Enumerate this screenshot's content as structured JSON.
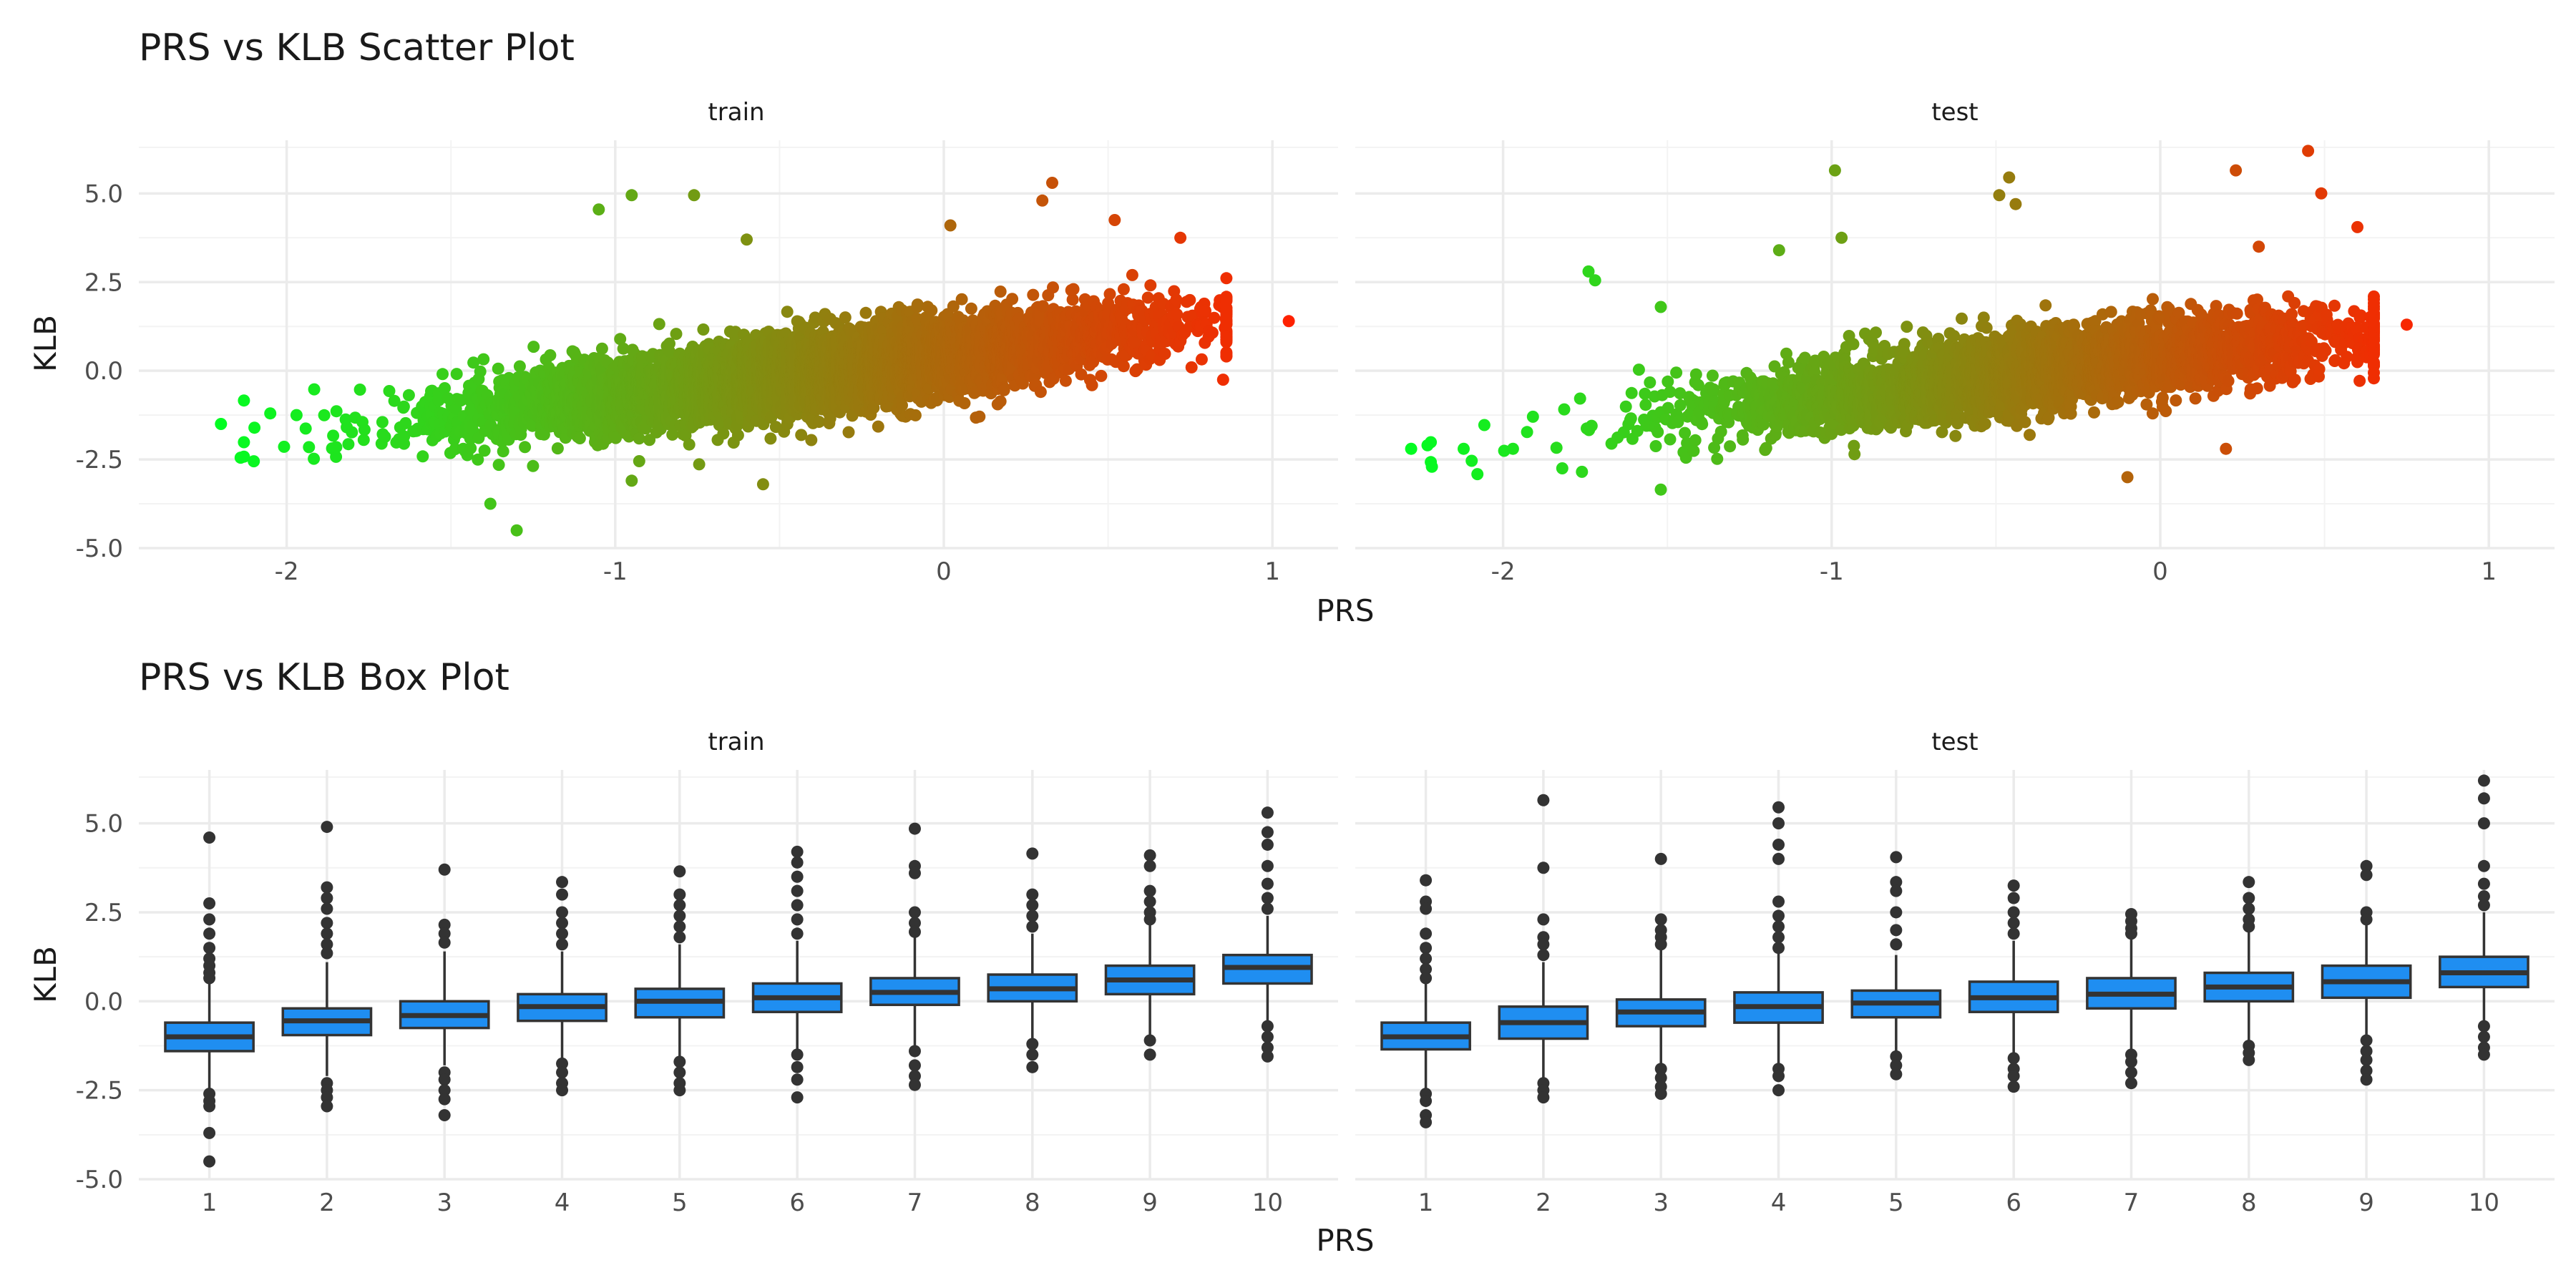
{
  "chart_data": [
    {
      "type": "scatter",
      "title": "PRS vs KLB Scatter Plot",
      "xlabel": "PRS",
      "ylabel": "KLB",
      "panels": [
        {
          "name": "train",
          "n_points": 6000,
          "x_range": [
            -2.23,
            1.06
          ],
          "slope": 1.1,
          "intercept": 0.4,
          "noise_sd": 0.55
        },
        {
          "name": "test",
          "n_points": 3500,
          "x_range": [
            -2.32,
            0.85
          ],
          "slope": 1.1,
          "intercept": 0.4,
          "noise_sd": 0.55
        }
      ],
      "outliers": {
        "train": [
          [
            -2.2,
            -1.5
          ],
          [
            -2.14,
            -2.45
          ],
          [
            -2.1,
            -2.55
          ],
          [
            -2.05,
            -1.2
          ],
          [
            -1.97,
            -1.25
          ],
          [
            -1.3,
            -4.5
          ],
          [
            -1.38,
            -3.75
          ],
          [
            -1.05,
            4.55
          ],
          [
            -0.95,
            4.95
          ],
          [
            -0.76,
            4.95
          ],
          [
            -0.6,
            3.7
          ],
          [
            0.02,
            4.1
          ],
          [
            0.33,
            5.3
          ],
          [
            0.3,
            4.8
          ],
          [
            0.52,
            4.25
          ],
          [
            0.72,
            3.75
          ],
          [
            1.05,
            1.4
          ],
          [
            0.85,
            -0.25
          ],
          [
            -0.95,
            -3.1
          ],
          [
            -0.55,
            -3.2
          ]
        ],
        "test": [
          [
            -2.28,
            -2.2
          ],
          [
            -2.23,
            -2.1
          ],
          [
            -2.12,
            -2.2
          ],
          [
            -1.97,
            -2.2
          ],
          [
            -1.82,
            -2.75
          ],
          [
            -1.76,
            -2.85
          ],
          [
            -1.74,
            2.8
          ],
          [
            -1.72,
            2.55
          ],
          [
            -1.52,
            1.8
          ],
          [
            -1.52,
            -3.35
          ],
          [
            -1.16,
            3.4
          ],
          [
            -0.99,
            5.65
          ],
          [
            -0.97,
            3.75
          ],
          [
            -0.49,
            4.95
          ],
          [
            -0.46,
            5.45
          ],
          [
            -0.44,
            4.7
          ],
          [
            -0.1,
            -3.0
          ],
          [
            0.23,
            5.65
          ],
          [
            0.3,
            3.5
          ],
          [
            0.45,
            6.2
          ],
          [
            0.49,
            5.0
          ],
          [
            0.6,
            4.05
          ],
          [
            0.2,
            -2.2
          ],
          [
            0.75,
            1.3
          ]
        ]
      },
      "color_gradient": [
        "#00ff22",
        "#ff2000"
      ],
      "y_ticks": [
        -5.0,
        -2.5,
        0.0,
        2.5,
        5.0
      ],
      "x_ticks": [
        -2,
        -1,
        0,
        1
      ],
      "xlim": [
        -2.45,
        1.2
      ],
      "ylim": [
        -5.0,
        6.5
      ]
    },
    {
      "type": "box",
      "title": "PRS vs KLB Box Plot",
      "xlabel": "PRS",
      "ylabel": "KLB",
      "categories": [
        "1",
        "2",
        "3",
        "4",
        "5",
        "6",
        "7",
        "8",
        "9",
        "10"
      ],
      "fill_color": "#1f8ef1",
      "y_ticks": [
        -5.0,
        -2.5,
        0.0,
        2.5,
        5.0
      ],
      "ylim": [
        -5.0,
        6.5
      ],
      "panels": [
        {
          "name": "train",
          "boxes": [
            {
              "q1": -1.4,
              "median": -1.0,
              "q3": -0.6,
              "lo": -2.5,
              "hi": 0.5,
              "outliers": [
                4.6,
                2.75,
                2.3,
                1.9,
                1.5,
                1.2,
                1.0,
                0.8,
                0.65,
                -2.6,
                -2.8,
                -2.95,
                -3.7,
                -4.5
              ]
            },
            {
              "q1": -0.95,
              "median": -0.55,
              "q3": -0.2,
              "lo": -2.1,
              "hi": 1.1,
              "outliers": [
                4.9,
                3.2,
                2.9,
                2.6,
                2.2,
                1.9,
                1.6,
                1.35,
                -2.3,
                -2.5,
                -2.7,
                -2.95
              ]
            },
            {
              "q1": -0.75,
              "median": -0.4,
              "q3": 0.0,
              "lo": -1.8,
              "hi": 1.4,
              "outliers": [
                3.7,
                2.15,
                1.9,
                1.65,
                -2.0,
                -2.2,
                -2.5,
                -2.75,
                -3.2
              ]
            },
            {
              "q1": -0.55,
              "median": -0.15,
              "q3": 0.2,
              "lo": -1.7,
              "hi": 1.4,
              "outliers": [
                3.35,
                3.0,
                2.5,
                2.2,
                1.9,
                1.6,
                -1.75,
                -2.0,
                -2.3,
                -2.5
              ]
            },
            {
              "q1": -0.45,
              "median": 0.0,
              "q3": 0.35,
              "lo": -1.6,
              "hi": 1.6,
              "outliers": [
                3.65,
                3.0,
                2.7,
                2.4,
                2.1,
                1.8,
                -1.7,
                -2.0,
                -2.3,
                -2.5
              ]
            },
            {
              "q1": -0.3,
              "median": 0.1,
              "q3": 0.5,
              "lo": -1.4,
              "hi": 1.7,
              "outliers": [
                4.2,
                3.9,
                3.5,
                3.1,
                2.7,
                2.3,
                1.9,
                -1.5,
                -1.85,
                -2.2,
                -2.7
              ]
            },
            {
              "q1": -0.1,
              "median": 0.25,
              "q3": 0.65,
              "lo": -1.3,
              "hi": 1.8,
              "outliers": [
                4.85,
                3.8,
                3.6,
                2.5,
                2.2,
                1.95,
                -1.4,
                -1.8,
                -2.1,
                -2.35
              ]
            },
            {
              "q1": 0.0,
              "median": 0.35,
              "q3": 0.75,
              "lo": -1.1,
              "hi": 1.9,
              "outliers": [
                4.15,
                3.0,
                2.7,
                2.4,
                2.1,
                -1.2,
                -1.5,
                -1.85
              ]
            },
            {
              "q1": 0.2,
              "median": 0.6,
              "q3": 1.0,
              "lo": -1.0,
              "hi": 2.15,
              "outliers": [
                4.1,
                3.8,
                3.1,
                2.8,
                2.5,
                2.3,
                -1.1,
                -1.5
              ]
            },
            {
              "q1": 0.5,
              "median": 0.95,
              "q3": 1.3,
              "lo": -0.6,
              "hi": 2.4,
              "outliers": [
                5.3,
                4.75,
                4.4,
                3.8,
                3.3,
                2.9,
                2.6,
                -0.7,
                -1.0,
                -1.3,
                -1.55
              ]
            }
          ]
        },
        {
          "name": "test",
          "boxes": [
            {
              "q1": -1.35,
              "median": -1.0,
              "q3": -0.6,
              "lo": -2.5,
              "hi": 0.5,
              "outliers": [
                3.4,
                2.8,
                2.6,
                1.9,
                1.5,
                1.2,
                0.9,
                0.65,
                -2.6,
                -2.8,
                -3.2,
                -3.4
              ]
            },
            {
              "q1": -1.05,
              "median": -0.6,
              "q3": -0.15,
              "lo": -2.2,
              "hi": 1.1,
              "outliers": [
                5.65,
                3.75,
                2.3,
                1.8,
                1.6,
                1.3,
                -2.3,
                -2.5,
                -2.7
              ]
            },
            {
              "q1": -0.7,
              "median": -0.3,
              "q3": 0.05,
              "lo": -1.85,
              "hi": 1.5,
              "outliers": [
                4.0,
                2.3,
                2.0,
                1.8,
                1.6,
                -1.9,
                -2.15,
                -2.4,
                -2.6
              ]
            },
            {
              "q1": -0.6,
              "median": -0.15,
              "q3": 0.25,
              "lo": -1.8,
              "hi": 1.4,
              "outliers": [
                5.45,
                5.0,
                4.4,
                4.0,
                2.8,
                2.4,
                2.1,
                1.8,
                1.5,
                -1.9,
                -2.1,
                -2.5
              ]
            },
            {
              "q1": -0.45,
              "median": -0.05,
              "q3": 0.3,
              "lo": -1.5,
              "hi": 1.3,
              "outliers": [
                4.05,
                3.35,
                3.1,
                2.5,
                2.0,
                1.6,
                -1.55,
                -1.8,
                -2.05
              ]
            },
            {
              "q1": -0.3,
              "median": 0.1,
              "q3": 0.55,
              "lo": -1.5,
              "hi": 1.7,
              "outliers": [
                3.25,
                2.9,
                2.5,
                2.2,
                1.9,
                -1.6,
                -1.9,
                -2.1,
                -2.4
              ]
            },
            {
              "q1": -0.2,
              "median": 0.2,
              "q3": 0.65,
              "lo": -1.4,
              "hi": 1.8,
              "outliers": [
                2.45,
                2.25,
                2.05,
                1.9,
                -1.5,
                -1.7,
                -2.0,
                -2.3
              ]
            },
            {
              "q1": 0.0,
              "median": 0.4,
              "q3": 0.8,
              "lo": -1.2,
              "hi": 1.95,
              "outliers": [
                3.35,
                2.9,
                2.6,
                2.3,
                2.1,
                -1.25,
                -1.45,
                -1.65
              ]
            },
            {
              "q1": 0.1,
              "median": 0.55,
              "q3": 1.0,
              "lo": -1.0,
              "hi": 2.2,
              "outliers": [
                3.8,
                3.55,
                2.5,
                2.3,
                -1.1,
                -1.4,
                -1.65,
                -1.95,
                -2.2
              ]
            },
            {
              "q1": 0.4,
              "median": 0.8,
              "q3": 1.25,
              "lo": -0.6,
              "hi": 2.5,
              "outliers": [
                6.2,
                5.7,
                5.0,
                3.8,
                3.3,
                2.95,
                2.7,
                -0.7,
                -1.0,
                -1.3,
                -1.5
              ]
            }
          ]
        }
      ]
    }
  ]
}
